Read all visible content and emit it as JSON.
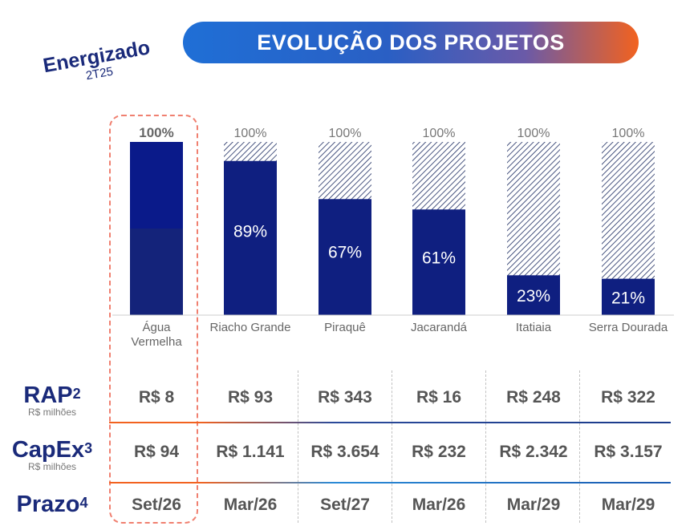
{
  "title": "EVOLUÇÃO DOS PROJETOS",
  "energizado": {
    "label": "Energizado",
    "period": "2T25"
  },
  "chart_data": {
    "type": "bar",
    "categories": [
      "Água Vermelha",
      "Riacho Grande",
      "Piraquê",
      "Jacarandá",
      "Itatiaia",
      "Serra Dourada"
    ],
    "category_lines": [
      [
        "Água",
        "Vermelha"
      ],
      [
        "Riacho Grande"
      ],
      [
        "Piraquê"
      ],
      [
        "Jacarandá"
      ],
      [
        "Itatiaia"
      ],
      [
        "Serra Dourada"
      ]
    ],
    "values": [
      100,
      89,
      67,
      61,
      23,
      21
    ],
    "value_labels": [
      "100%",
      "89%",
      "67%",
      "61%",
      "23%",
      "21%"
    ],
    "totals": [
      100,
      100,
      100,
      100,
      100,
      100
    ],
    "total_labels": [
      "100%",
      "100%",
      "100%",
      "100%",
      "100%",
      "100%"
    ],
    "ylim": [
      0,
      100
    ],
    "grid": false,
    "legend": "none"
  },
  "table": {
    "rows": [
      {
        "label": "RAP",
        "sup": "2",
        "sub": "R$ milhões",
        "values": [
          "R$ 8",
          "R$ 93",
          "R$ 343",
          "R$ 16",
          "R$ 248",
          "R$ 322"
        ]
      },
      {
        "label": "CapEx",
        "sup": "3",
        "sub": "R$ milhões",
        "values": [
          "R$ 94",
          "R$ 1.141",
          "R$ 3.654",
          "R$ 232",
          "R$ 2.342",
          "R$ 3.157"
        ]
      },
      {
        "label": "Prazo",
        "sup": "4",
        "sub": "",
        "values": [
          "Set/26",
          "Mar/26",
          "Set/27",
          "Mar/26",
          "Mar/29",
          "Mar/29"
        ]
      }
    ]
  },
  "colors": {
    "bar_fill": "#0f1f80",
    "bar_fill_dark": "#14237a",
    "bar_top_energized": "#0a1a8a",
    "hatch": "#1a2a60",
    "title_left": "#1f6fd6",
    "title_right": "#f2621f",
    "divider_orange": "#f2621f",
    "divider_blue": "#1a3a8a"
  }
}
